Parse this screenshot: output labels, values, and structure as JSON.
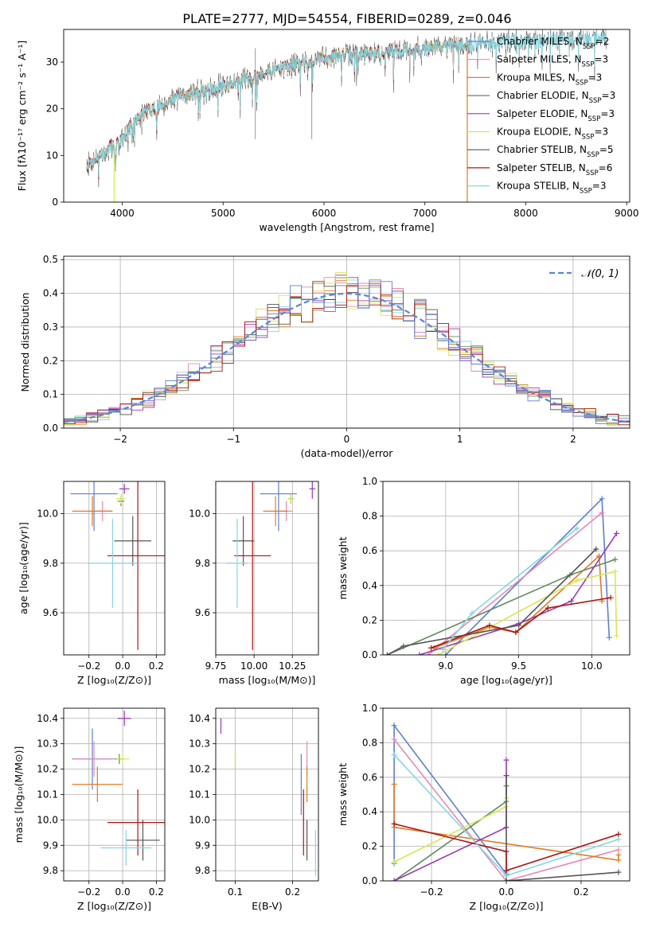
{
  "figure": {
    "title": "PLATE=2777, MJD=54554, FIBERID=0289, z=0.046"
  },
  "colors": [
    "#5b7fd6",
    "#e788b7",
    "#e07b1f",
    "#5f8a5f",
    "#9a38b8",
    "#d4ea4b",
    "#555555",
    "#b01414",
    "#84d8e0"
  ],
  "chart_data": [
    {
      "id": "spectrum",
      "type": "line",
      "xlabel": "wavelength [Angstrom, rest frame]",
      "ylabel": "Flux [fλ10⁻¹⁷ erg cm⁻² s⁻¹ A⁻¹]",
      "xlim": [
        3420,
        9030
      ],
      "ylim": [
        0,
        37
      ],
      "xticks": [
        4000,
        5000,
        6000,
        7000,
        8000,
        9000
      ],
      "yticks": [
        0,
        10,
        20,
        30
      ],
      "legend_position": "right",
      "legend": [
        {
          "name": "Chabrier MILES",
          "n": "2"
        },
        {
          "name": "Salpeter MILES",
          "n": "3"
        },
        {
          "name": "Kroupa MILES",
          "n": "3"
        },
        {
          "name": "Chabrier ELODIE",
          "n": "3"
        },
        {
          "name": "Salpeter ELODIE",
          "n": "3"
        },
        {
          "name": "Kroupa ELODIE",
          "n": "3"
        },
        {
          "name": "Chabrier STELIB",
          "n": "5"
        },
        {
          "name": "Salpeter STELIB",
          "n": "6"
        },
        {
          "name": "Kroupa STELIB",
          "n": "3"
        }
      ],
      "continuum": [
        [
          3650,
          8
        ],
        [
          3800,
          10
        ],
        [
          4000,
          14
        ],
        [
          4200,
          19
        ],
        [
          4500,
          22
        ],
        [
          4800,
          24
        ],
        [
          5000,
          25
        ],
        [
          5300,
          27
        ],
        [
          5600,
          29
        ],
        [
          6000,
          31
        ],
        [
          6500,
          32
        ],
        [
          7000,
          33
        ],
        [
          7500,
          34
        ],
        [
          8000,
          34.5
        ],
        [
          8500,
          35
        ],
        [
          8800,
          35.5
        ]
      ],
      "cutoffs": [
        {
          "series": 5,
          "x": 3920
        },
        {
          "series": 5,
          "x": 6800
        },
        {
          "series": 2,
          "x": 7420
        }
      ]
    },
    {
      "id": "residuals",
      "type": "line",
      "xlabel": "(data-model)/error",
      "ylabel": "Normed distribution",
      "xlim": [
        -2.5,
        2.5
      ],
      "ylim": [
        0,
        0.51
      ],
      "xticks": [
        -2,
        -1,
        0,
        1,
        2
      ],
      "yticks": [
        0.0,
        0.1,
        0.2,
        0.3,
        0.4,
        0.5
      ],
      "grid": true,
      "reference_label": "𝒩(0, 1)",
      "legend_position": "top-right"
    },
    {
      "id": "age_vs_Z",
      "type": "scatter",
      "xlabel": "Z [log₁₀(Z/Z⊙)]",
      "ylabel": "age  [log₁₀(age/yr)]",
      "xlim": [
        -0.35,
        0.25
      ],
      "ylim": [
        9.43,
        10.13
      ],
      "xticks": [
        -0.2,
        0.0,
        0.2
      ],
      "yticks": [
        9.6,
        9.8,
        10.0
      ],
      "grid": true,
      "points": [
        {
          "s": 0,
          "x": -0.17,
          "y": 10.08,
          "xe": 0.14,
          "ye": 0.15
        },
        {
          "s": 1,
          "x": -0.12,
          "y": 10.01,
          "xe": 0.06,
          "ye": 0.04
        },
        {
          "s": 2,
          "x": -0.18,
          "y": 10.01,
          "xe": 0.12,
          "ye": 0.06
        },
        {
          "s": 3,
          "x": -0.01,
          "y": 10.05,
          "xe": 0.02,
          "ye": 0.02
        },
        {
          "s": 4,
          "x": 0.01,
          "y": 10.1,
          "xe": 0.03,
          "ye": 0.02
        },
        {
          "s": 5,
          "x": -0.01,
          "y": 10.06,
          "xe": 0.03,
          "ye": 0.02
        },
        {
          "s": 6,
          "x": 0.06,
          "y": 9.89,
          "xe": 0.11,
          "ye": 0.1
        },
        {
          "s": 7,
          "x": 0.09,
          "y": 9.83,
          "xe": 0.18,
          "ye": 0.38
        },
        {
          "s": 8,
          "x": -0.06,
          "y": 9.8,
          "xe": 0.15,
          "ye": 0.18
        }
      ]
    },
    {
      "id": "age_vs_mass",
      "type": "scatter",
      "xlabel": "mass [log₁₀(M/M⊙)]",
      "ylabel": "",
      "xlim": [
        9.75,
        10.42
      ],
      "ylim": [
        9.43,
        10.13
      ],
      "xticks": [
        9.75,
        10.0,
        10.25
      ],
      "yticks": [
        9.6,
        9.8,
        10.0
      ],
      "grid": true,
      "points": [
        {
          "s": 0,
          "x": 10.16,
          "y": 10.08,
          "xe": 0.12,
          "ye": 0.15
        },
        {
          "s": 1,
          "x": 10.21,
          "y": 10.01,
          "xe": 0.04,
          "ye": 0.04
        },
        {
          "s": 2,
          "x": 10.14,
          "y": 10.01,
          "xe": 0.08,
          "ye": 0.06
        },
        {
          "s": 3,
          "x": 10.24,
          "y": 10.06,
          "xe": 0.02,
          "ye": 0.02
        },
        {
          "s": 4,
          "x": 10.38,
          "y": 10.1,
          "xe": 0.02,
          "ye": 0.04
        },
        {
          "s": 5,
          "x": 10.24,
          "y": 10.06,
          "xe": 0.02,
          "ye": 0.02
        },
        {
          "s": 6,
          "x": 9.93,
          "y": 9.89,
          "xe": 0.07,
          "ye": 0.1
        },
        {
          "s": 7,
          "x": 9.99,
          "y": 9.83,
          "xe": 0.12,
          "ye": 0.38
        },
        {
          "s": 8,
          "x": 9.89,
          "y": 9.8,
          "xe": 0.07,
          "ye": 0.18
        }
      ]
    },
    {
      "id": "weight_vs_age",
      "type": "line",
      "xlabel": "age  [log₁₀(age/yr)]",
      "ylabel": "mass weight",
      "xlim": [
        8.57,
        10.26
      ],
      "ylim": [
        0,
        1
      ],
      "xticks": [
        9.0,
        9.5,
        10.0
      ],
      "yticks": [
        0.0,
        0.2,
        0.4,
        0.6,
        0.8,
        1.0
      ],
      "grid": true,
      "series": [
        {
          "s": 0,
          "x": [
            9.0,
            10.07,
            10.12
          ],
          "y": [
            0.0,
            0.9,
            0.1
          ]
        },
        {
          "s": 1,
          "x": [
            8.88,
            10.07
          ],
          "y": [
            0.0,
            0.82
          ]
        },
        {
          "s": 2,
          "x": [
            8.92,
            9.3,
            9.48,
            10.05,
            10.07
          ],
          "y": [
            0.04,
            0.16,
            0.13,
            0.57,
            0.31
          ]
        },
        {
          "s": 3,
          "x": [
            8.6,
            9.85,
            10.16
          ],
          "y": [
            0.0,
            0.46,
            0.55
          ]
        },
        {
          "s": 4,
          "x": [
            8.82,
            9.5,
            9.86,
            10.17
          ],
          "y": [
            0.0,
            0.18,
            0.31,
            0.7
          ]
        },
        {
          "s": 5,
          "x": [
            8.95,
            9.9,
            10.16,
            10.17
          ],
          "y": [
            0.0,
            0.43,
            0.48,
            0.11
          ]
        },
        {
          "s": 6,
          "x": [
            8.6,
            8.71,
            9.5,
            10.03
          ],
          "y": [
            0.0,
            0.05,
            0.17,
            0.61
          ]
        },
        {
          "s": 7,
          "x": [
            8.9,
            9.3,
            9.48,
            9.7,
            10.13
          ],
          "y": [
            0.04,
            0.17,
            0.13,
            0.27,
            0.33
          ]
        },
        {
          "s": 8,
          "x": [
            8.98,
            9.18,
            9.9
          ],
          "y": [
            0.03,
            0.24,
            0.73
          ]
        }
      ]
    },
    {
      "id": "mass_vs_Z",
      "type": "scatter",
      "xlabel": "Z [log₁₀(Z/Z⊙)]",
      "ylabel": "mass [log₁₀(M/M⊙)]",
      "xlim": [
        -0.35,
        0.25
      ],
      "ylim": [
        9.76,
        10.44
      ],
      "xticks": [
        -0.2,
        0.0,
        0.2
      ],
      "yticks": [
        9.8,
        9.9,
        10.0,
        10.1,
        10.2,
        10.3,
        10.4
      ],
      "grid": true,
      "points": [
        {
          "s": 0,
          "x": -0.18,
          "y": 10.24,
          "xe": 0.12,
          "ye": 0.12
        },
        {
          "s": 1,
          "x": -0.17,
          "y": 10.24,
          "xe": 0.12,
          "ye": 0.07
        },
        {
          "s": 2,
          "x": -0.15,
          "y": 10.14,
          "xe": 0.15,
          "ye": 0.07
        },
        {
          "s": 3,
          "x": -0.02,
          "y": 10.24,
          "xe": 0.03,
          "ye": 0.02
        },
        {
          "s": 4,
          "x": 0.01,
          "y": 10.4,
          "xe": 0.04,
          "ye": 0.03
        },
        {
          "s": 5,
          "x": 0.0,
          "y": 10.24,
          "xe": 0.04,
          "ye": 0.02
        },
        {
          "s": 6,
          "x": 0.12,
          "y": 9.92,
          "xe": 0.1,
          "ye": 0.08
        },
        {
          "s": 7,
          "x": 0.09,
          "y": 9.99,
          "xe": 0.18,
          "ye": 0.13
        },
        {
          "s": 8,
          "x": 0.02,
          "y": 9.89,
          "xe": 0.15,
          "ye": 0.07
        }
      ]
    },
    {
      "id": "mass_vs_ebv",
      "type": "scatter",
      "xlabel": "E(B-V)",
      "ylabel": "",
      "xlim": [
        0.066,
        0.245
      ],
      "ylim": [
        9.76,
        10.44
      ],
      "xticks": [
        0.1,
        0.2
      ],
      "yticks": [
        9.8,
        9.9,
        10.0,
        10.1,
        10.2,
        10.3,
        10.4
      ],
      "grid": true,
      "points": [
        {
          "s": 0,
          "x": 0.215,
          "y": 10.14,
          "xe": 0,
          "ye": 0.12
        },
        {
          "s": 1,
          "x": 0.225,
          "y": 10.24,
          "xe": 0,
          "ye": 0.07
        },
        {
          "s": 2,
          "x": 0.225,
          "y": 10.14,
          "xe": 0,
          "ye": 0.07
        },
        {
          "s": 3,
          "x": 0.1,
          "y": 10.23,
          "xe": 0,
          "ye": 0.03
        },
        {
          "s": 4,
          "x": 0.075,
          "y": 10.37,
          "xe": 0,
          "ye": 0.03
        },
        {
          "s": 5,
          "x": 0.1,
          "y": 10.23,
          "xe": 0,
          "ye": 0.03
        },
        {
          "s": 6,
          "x": 0.225,
          "y": 9.92,
          "xe": 0,
          "ye": 0.08
        },
        {
          "s": 7,
          "x": 0.219,
          "y": 9.99,
          "xe": 0,
          "ye": 0.13
        },
        {
          "s": 8,
          "x": 0.24,
          "y": 9.87,
          "xe": 0,
          "ye": 0.09
        }
      ]
    },
    {
      "id": "weight_vs_Z",
      "type": "line",
      "xlabel": "Z [log₁₀(Z/Z⊙)]",
      "ylabel": "mass weight",
      "xlim": [
        -0.33,
        0.33
      ],
      "ylim": [
        0,
        1
      ],
      "xticks": [
        -0.2,
        0.0,
        0.2
      ],
      "yticks": [
        0.0,
        0.2,
        0.4,
        0.6,
        0.8,
        1.0
      ],
      "grid": true,
      "series": [
        {
          "s": 0,
          "x": [
            -0.3,
            -0.3,
            0.0
          ],
          "y": [
            0.1,
            0.9,
            0.04
          ]
        },
        {
          "s": 1,
          "x": [
            -0.3,
            0.0,
            0.3
          ],
          "y": [
            0.82,
            0.0,
            0.18
          ]
        },
        {
          "s": 2,
          "x": [
            -0.3,
            -0.3,
            0.3,
            0.3
          ],
          "y": [
            0.56,
            0.31,
            0.12,
            0.15
          ]
        },
        {
          "s": 3,
          "x": [
            -0.3,
            0.0,
            0.0
          ],
          "y": [
            0.0,
            0.46,
            0.55
          ]
        },
        {
          "s": 4,
          "x": [
            -0.3,
            0.0,
            0.0
          ],
          "y": [
            0.0,
            0.31,
            0.7
          ]
        },
        {
          "s": 5,
          "x": [
            -0.3,
            0.0,
            0.0
          ],
          "y": [
            0.11,
            0.43,
            0.48
          ]
        },
        {
          "s": 6,
          "x": [
            0.0,
            0.0,
            0.3
          ],
          "y": [
            0.61,
            0.0,
            0.05
          ]
        },
        {
          "s": 7,
          "x": [
            -0.3,
            0.0,
            0.0,
            0.3
          ],
          "y": [
            0.33,
            0.17,
            0.06,
            0.27
          ]
        },
        {
          "s": 8,
          "x": [
            -0.3,
            0.0,
            0.3
          ],
          "y": [
            0.73,
            0.03,
            0.24
          ]
        }
      ]
    }
  ]
}
